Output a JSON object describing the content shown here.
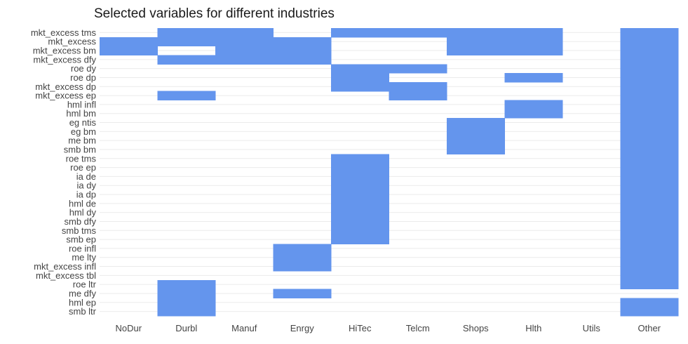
{
  "chart_data": {
    "type": "heatmap",
    "title": "Selected variables for different industries",
    "xlabel": "",
    "ylabel": "",
    "grid": true,
    "legend": "none",
    "fill_color": "#6495ED",
    "x_categories": [
      "NoDur",
      "Durbl",
      "Manuf",
      "Enrgy",
      "HiTec",
      "Telcm",
      "Shops",
      "Hlth",
      "Utils",
      "Other"
    ],
    "y_categories": [
      "mkt_excess tms",
      "mkt_excess",
      "mkt_excess bm",
      "mkt_excess dfy",
      "roe dy",
      "roe dp",
      "mkt_excess dp",
      "mkt_excess ep",
      "hml infl",
      "hml bm",
      "eg ntis",
      "eg bm",
      "me bm",
      "smb bm",
      "roe tms",
      "roe ep",
      "ia de",
      "ia dy",
      "ia dp",
      "hml de",
      "hml dy",
      "smb dfy",
      "smb tms",
      "smb ep",
      "roe infl",
      "me lty",
      "mkt_excess infl",
      "mkt_excess tbl",
      "roe ltr",
      "me dfy",
      "hml ep",
      "smb ltr"
    ],
    "selected": [
      {
        "industry": "NoDur",
        "variables": [
          "mkt_excess",
          "mkt_excess bm"
        ]
      },
      {
        "industry": "Durbl",
        "variables": [
          "mkt_excess tms",
          "mkt_excess",
          "mkt_excess dfy",
          "mkt_excess ep",
          "roe ltr",
          "me dfy",
          "hml ep",
          "smb ltr"
        ]
      },
      {
        "industry": "Manuf",
        "variables": [
          "mkt_excess tms",
          "mkt_excess",
          "mkt_excess bm",
          "mkt_excess dfy"
        ]
      },
      {
        "industry": "Enrgy",
        "variables": [
          "mkt_excess",
          "mkt_excess bm",
          "mkt_excess dfy",
          "roe infl",
          "me lty",
          "mkt_excess infl",
          "me dfy"
        ]
      },
      {
        "industry": "HiTec",
        "variables": [
          "mkt_excess tms",
          "roe dy",
          "roe dp",
          "mkt_excess dp",
          "roe tms",
          "roe ep",
          "ia de",
          "ia dy",
          "ia dp",
          "hml de",
          "hml dy",
          "smb dfy",
          "smb tms",
          "smb ep"
        ]
      },
      {
        "industry": "Telcm",
        "variables": [
          "mkt_excess tms",
          "roe dy",
          "mkt_excess dp",
          "mkt_excess ep"
        ]
      },
      {
        "industry": "Shops",
        "variables": [
          "mkt_excess tms",
          "mkt_excess",
          "mkt_excess bm",
          "eg ntis",
          "eg bm",
          "me bm",
          "smb bm"
        ]
      },
      {
        "industry": "Hlth",
        "variables": [
          "mkt_excess tms",
          "mkt_excess",
          "mkt_excess bm",
          "roe dp",
          "hml infl",
          "hml bm"
        ]
      },
      {
        "industry": "Utils",
        "variables": []
      },
      {
        "industry": "Other",
        "variables": [
          "mkt_excess tms",
          "mkt_excess",
          "mkt_excess bm",
          "mkt_excess dfy",
          "roe dy",
          "roe dp",
          "mkt_excess dp",
          "mkt_excess ep",
          "hml infl",
          "hml bm",
          "eg ntis",
          "eg bm",
          "me bm",
          "smb bm",
          "roe tms",
          "roe ep",
          "ia de",
          "ia dy",
          "ia dp",
          "hml de",
          "hml dy",
          "smb dfy",
          "smb tms",
          "smb ep",
          "roe infl",
          "me lty",
          "mkt_excess infl",
          "mkt_excess tbl",
          "roe ltr",
          "hml ep",
          "smb ltr"
        ]
      }
    ]
  }
}
